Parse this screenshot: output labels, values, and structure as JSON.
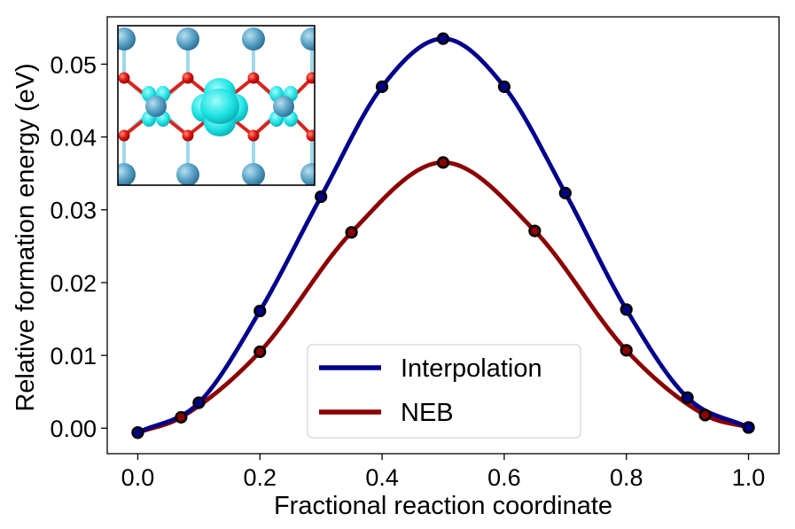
{
  "chart_data": {
    "type": "line",
    "xlabel": "Fractional reaction coordinate",
    "ylabel": "Relative formation energy (eV)",
    "xlim": [
      -0.05,
      1.05
    ],
    "ylim": [
      -0.0035,
      0.0565
    ],
    "xticks": [
      "0.0",
      "0.2",
      "0.4",
      "0.6",
      "0.8",
      "1.0"
    ],
    "yticks": [
      "0.00",
      "0.01",
      "0.02",
      "0.03",
      "0.04",
      "0.05"
    ],
    "legend_position": "lower-center",
    "series": [
      {
        "name": "Interpolation",
        "color": "#00008b",
        "x": [
          0.0,
          0.1,
          0.2,
          0.3,
          0.4,
          0.5,
          0.6,
          0.7,
          0.8,
          0.9,
          1.0
        ],
        "y": [
          -0.0006,
          0.0035,
          0.0161,
          0.0318,
          0.0469,
          0.0535,
          0.0469,
          0.0323,
          0.0163,
          0.0042,
          0.0001
        ]
      },
      {
        "name": "NEB",
        "color": "#8b0000",
        "x": [
          0.0,
          0.071,
          0.2,
          0.35,
          0.5,
          0.65,
          0.8,
          0.929,
          1.0
        ],
        "y": [
          -0.0006,
          0.0015,
          0.0105,
          0.0269,
          0.0365,
          0.0271,
          0.0107,
          0.0018,
          0.0001
        ]
      }
    ],
    "marker_color": "#000000"
  },
  "inset": {
    "atoms_large_color": "#5aa3c7",
    "atoms_small_color": "#e0120f",
    "density_color": "#1ee3e3",
    "bond_light_color": "#9fd8ea",
    "bond_red_color": "#d9241c"
  }
}
